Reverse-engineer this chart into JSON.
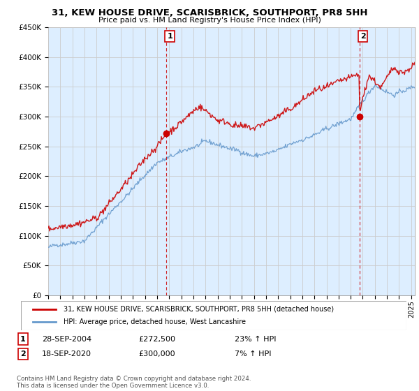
{
  "title": "31, KEW HOUSE DRIVE, SCARISBRICK, SOUTHPORT, PR8 5HH",
  "subtitle": "Price paid vs. HM Land Registry's House Price Index (HPI)",
  "ylabel_ticks": [
    "£0",
    "£50K",
    "£100K",
    "£150K",
    "£200K",
    "£250K",
    "£300K",
    "£350K",
    "£400K",
    "£450K"
  ],
  "ylim": [
    0,
    450000
  ],
  "xlim_start": 1995.0,
  "xlim_end": 2025.3,
  "red_line_color": "#cc0000",
  "blue_line_color": "#6699cc",
  "dashed_line_color": "#cc0000",
  "fill_color": "#ddeeff",
  "marker1_x": 2004.75,
  "marker1_y": 272500,
  "marker2_x": 2020.72,
  "marker2_y": 300000,
  "legend_label_red": "31, KEW HOUSE DRIVE, SCARISBRICK, SOUTHPORT, PR8 5HH (detached house)",
  "legend_label_blue": "HPI: Average price, detached house, West Lancashire",
  "annotation1_label": "1",
  "annotation1_date": "28-SEP-2004",
  "annotation1_price": "£272,500",
  "annotation1_hpi": "23% ↑ HPI",
  "annotation2_label": "2",
  "annotation2_date": "18-SEP-2020",
  "annotation2_price": "£300,000",
  "annotation2_hpi": "7% ↑ HPI",
  "footer": "Contains HM Land Registry data © Crown copyright and database right 2024.\nThis data is licensed under the Open Government Licence v3.0.",
  "background_color": "#ffffff",
  "grid_color": "#cccccc"
}
